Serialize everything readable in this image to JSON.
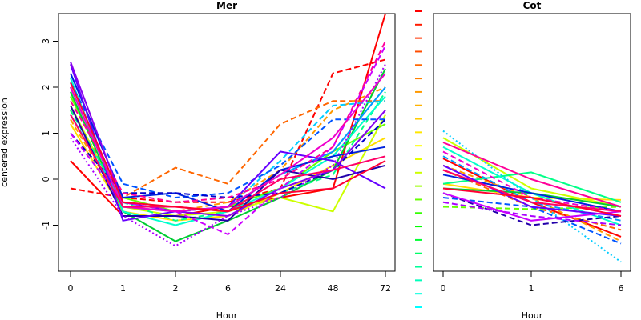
{
  "ylabel": "centered expression",
  "chart_data": [
    {
      "type": "line",
      "title": "Mer",
      "xlabel": "Hour",
      "ylabel": "centered expression",
      "categories": [
        "0",
        "1",
        "2",
        "6",
        "24",
        "48",
        "72"
      ],
      "y_ticks": [
        "-1",
        "0",
        "1",
        "2",
        "3"
      ],
      "ylim": [
        -2,
        3.6
      ],
      "grid": false,
      "series": [
        {
          "color": "#ff0000",
          "dash": "solid",
          "values": [
            0.4,
            -0.8,
            -0.8,
            -0.6,
            -0.4,
            -0.2,
            3.6
          ]
        },
        {
          "color": "#ff0000",
          "dash": "dashed",
          "values": [
            -0.2,
            -0.4,
            -0.5,
            -0.5,
            -0.2,
            2.3,
            2.6
          ]
        },
        {
          "color": "#ff6600",
          "dash": "dashed",
          "values": [
            1.5,
            -0.4,
            0.25,
            -0.1,
            1.2,
            1.7,
            1.7
          ]
        },
        {
          "color": "#ff9900",
          "dash": "dashed",
          "values": [
            1.3,
            -0.6,
            -0.7,
            -0.5,
            0.2,
            1.5,
            2.0
          ]
        },
        {
          "color": "#ffdd00",
          "dash": "solid",
          "values": [
            1.2,
            -0.7,
            -0.9,
            -0.8,
            -0.3,
            0.3,
            0.9
          ]
        },
        {
          "color": "#ccff00",
          "dash": "solid",
          "values": [
            1.6,
            -0.6,
            -0.8,
            -0.7,
            -0.4,
            -0.7,
            1.4
          ]
        },
        {
          "color": "#66ff00",
          "dash": "solid",
          "values": [
            1.8,
            -0.4,
            -0.7,
            -0.6,
            -0.2,
            0.6,
            1.2
          ]
        },
        {
          "color": "#00cc33",
          "dash": "solid",
          "values": [
            1.9,
            -0.7,
            -1.35,
            -0.9,
            -0.4,
            0.2,
            2.4
          ]
        },
        {
          "color": "#00ff88",
          "dash": "dashed",
          "values": [
            1.5,
            -0.5,
            -0.9,
            -0.7,
            -0.3,
            0.1,
            1.9
          ]
        },
        {
          "color": "#00ffcc",
          "dash": "solid",
          "values": [
            2.2,
            -0.7,
            -1.0,
            -0.7,
            -0.2,
            0.5,
            1.8
          ]
        },
        {
          "color": "#00ccff",
          "dash": "dashed",
          "values": [
            1.4,
            -0.5,
            -0.7,
            -0.6,
            0.4,
            1.6,
            1.7
          ]
        },
        {
          "color": "#0099ff",
          "dash": "solid",
          "values": [
            2.0,
            -0.6,
            -0.7,
            -0.6,
            0.1,
            0.6,
            2.0
          ]
        },
        {
          "color": "#0055ff",
          "dash": "dashed",
          "values": [
            2.1,
            -0.1,
            -0.4,
            -0.3,
            0.3,
            1.3,
            1.3
          ]
        },
        {
          "color": "#0022dd",
          "dash": "solid",
          "values": [
            2.3,
            -0.4,
            -0.3,
            -0.7,
            0.2,
            0.5,
            0.7
          ]
        },
        {
          "color": "#0000cc",
          "dash": "dashed",
          "values": [
            1.0,
            -0.3,
            -0.3,
            -0.4,
            -0.3,
            0.2,
            1.3
          ]
        },
        {
          "color": "#2200aa",
          "dash": "solid",
          "values": [
            1.6,
            -0.8,
            -0.8,
            -0.9,
            0.2,
            0.0,
            0.3
          ]
        },
        {
          "color": "#6600ff",
          "dash": "solid",
          "values": [
            2.5,
            -0.9,
            -0.7,
            -0.6,
            0.6,
            0.4,
            -0.2
          ]
        },
        {
          "color": "#8800ee",
          "dash": "solid",
          "values": [
            2.55,
            -0.5,
            -0.7,
            -0.8,
            -0.2,
            0.2,
            1.5
          ]
        },
        {
          "color": "#aa00ff",
          "dash": "dotted",
          "values": [
            0.9,
            -0.8,
            -1.45,
            -0.8,
            -0.4,
            0.3,
            2.5
          ]
        },
        {
          "color": "#cc00ff",
          "dash": "dashed",
          "values": [
            1.0,
            -0.5,
            -0.7,
            -1.2,
            -0.2,
            0.7,
            2.9
          ]
        },
        {
          "color": "#ee00cc",
          "dash": "solid",
          "values": [
            2.0,
            -0.6,
            -0.7,
            -0.6,
            0.1,
            0.9,
            2.3
          ]
        },
        {
          "color": "#ff0099",
          "dash": "dashed",
          "values": [
            1.7,
            -0.3,
            -0.5,
            -0.4,
            0.0,
            0.7,
            3.0
          ]
        },
        {
          "color": "#ff0066",
          "dash": "solid",
          "values": [
            1.4,
            -0.6,
            -0.6,
            -0.7,
            0.0,
            0.2,
            0.5
          ]
        },
        {
          "color": "#ff0033",
          "dash": "solid",
          "values": [
            2.1,
            -0.5,
            -0.6,
            -0.7,
            -0.3,
            -0.2,
            0.4
          ]
        }
      ]
    },
    {
      "type": "line",
      "title": "Cot",
      "xlabel": "Hour",
      "ylabel": "",
      "categories": [
        "0",
        "1",
        "6"
      ],
      "ylim": [
        -2,
        3.6
      ],
      "grid": false,
      "series": [
        {
          "color": "#ff0000",
          "dash": "solid",
          "values": [
            0.45,
            -0.5,
            -1.25
          ]
        },
        {
          "color": "#ff6600",
          "dash": "dashed",
          "values": [
            0.2,
            -0.6,
            -1.1
          ]
        },
        {
          "color": "#ff9900",
          "dash": "dashed",
          "values": [
            0.3,
            -0.4,
            -1.35
          ]
        },
        {
          "color": "#ffdd00",
          "dash": "solid",
          "values": [
            -0.1,
            -0.4,
            -0.45
          ]
        },
        {
          "color": "#ccff00",
          "dash": "solid",
          "values": [
            0.9,
            -0.2,
            -0.6
          ]
        },
        {
          "color": "#66ff00",
          "dash": "dashed",
          "values": [
            -0.6,
            -0.65,
            -0.6
          ]
        },
        {
          "color": "#00cc33",
          "dash": "solid",
          "values": [
            -0.2,
            -0.3,
            -0.6
          ]
        },
        {
          "color": "#00ff88",
          "dash": "solid",
          "values": [
            -0.1,
            0.15,
            -0.5
          ]
        },
        {
          "color": "#00ffcc",
          "dash": "solid",
          "values": [
            0.7,
            -0.3,
            -1.0
          ]
        },
        {
          "color": "#00ccff",
          "dash": "dotted",
          "values": [
            1.05,
            -0.4,
            -1.8
          ]
        },
        {
          "color": "#0099ff",
          "dash": "dashed",
          "values": [
            0.5,
            -0.5,
            -0.9
          ]
        },
        {
          "color": "#0055ff",
          "dash": "dashed",
          "values": [
            -0.4,
            -0.6,
            -1.4
          ]
        },
        {
          "color": "#0022dd",
          "dash": "solid",
          "values": [
            0.1,
            -0.3,
            -0.7
          ]
        },
        {
          "color": "#2200aa",
          "dash": "dashed",
          "values": [
            -0.3,
            -1.0,
            -0.8
          ]
        },
        {
          "color": "#6600ff",
          "dash": "solid",
          "values": [
            0.3,
            -0.6,
            -0.8
          ]
        },
        {
          "color": "#aa00ff",
          "dash": "dashed",
          "values": [
            -0.5,
            -0.8,
            -1.0
          ]
        },
        {
          "color": "#cc00ff",
          "dash": "solid",
          "values": [
            -0.3,
            -0.9,
            -0.7
          ]
        },
        {
          "color": "#ee00cc",
          "dash": "dashed",
          "values": [
            0.6,
            -0.4,
            -0.7
          ]
        },
        {
          "color": "#ff0099",
          "dash": "solid",
          "values": [
            0.8,
            0.0,
            -0.6
          ]
        },
        {
          "color": "#ff0066",
          "dash": "solid",
          "values": [
            0.2,
            -0.5,
            -0.7
          ]
        },
        {
          "color": "#ff0033",
          "dash": "solid",
          "values": [
            -0.2,
            -0.4,
            -0.8
          ]
        }
      ]
    }
  ],
  "color_key": {
    "colors": [
      "#ff0000",
      "#ff1a00",
      "#ff3300",
      "#ff4d00",
      "#ff6600",
      "#ff8000",
      "#ff9900",
      "#ffb300",
      "#ffcc00",
      "#ffe600",
      "#ffff00",
      "#e6ff00",
      "#ccff00",
      "#99ff00",
      "#66ff00",
      "#33ff00",
      "#00ff00",
      "#00ff33",
      "#00ff66",
      "#00ff99",
      "#00ffbb",
      "#00ffdd",
      "#00ffff"
    ]
  }
}
